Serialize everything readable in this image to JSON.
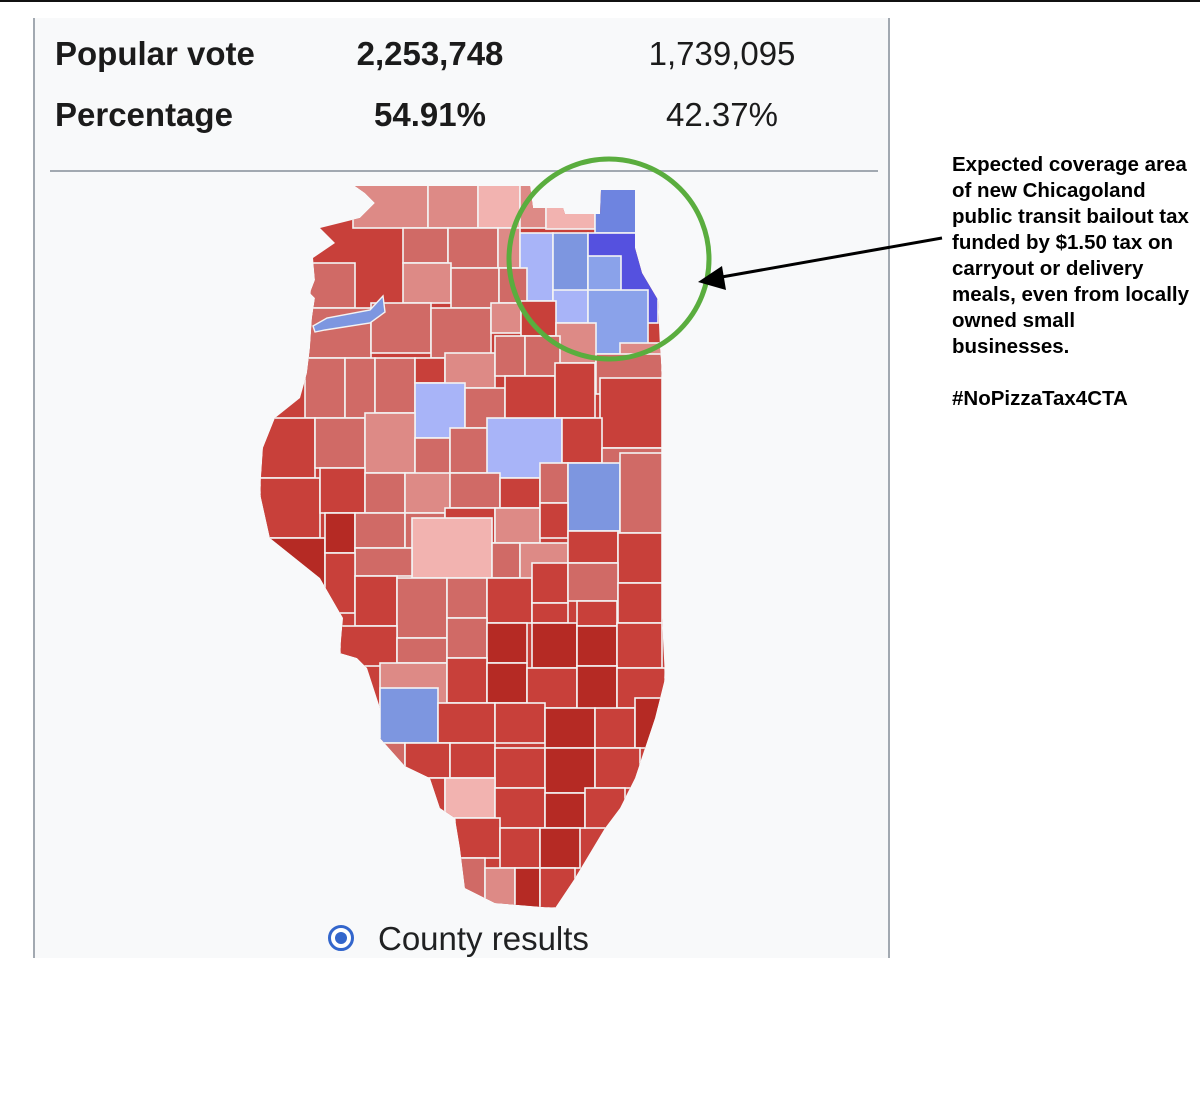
{
  "stats": {
    "popular_vote": {
      "label": "Popular vote",
      "candidate1": "2,253,748",
      "candidate2": "1,739,095"
    },
    "percentage": {
      "label": "Percentage",
      "candidate1": "54.91%",
      "candidate2": "42.37%"
    }
  },
  "legend": {
    "label": "County results",
    "selected": true
  },
  "annotation": {
    "text": "Expected coverage area of new Chicagoland public transit bailout tax funded by $1.50 tax on carryout or delivery meals, even from locally owned small businesses.",
    "hashtag": "#NoPizzaTax4CTA"
  },
  "colors": {
    "panel_bg": "#f8f9fa",
    "highlight_circle": "#5aad3e",
    "red_shades": [
      "#b52a24",
      "#c8403a",
      "#d06a66",
      "#dd8a86",
      "#f2b3b0"
    ],
    "blue_shades": [
      "#a8b4f8",
      "#7d96e0",
      "#5551df"
    ]
  }
}
